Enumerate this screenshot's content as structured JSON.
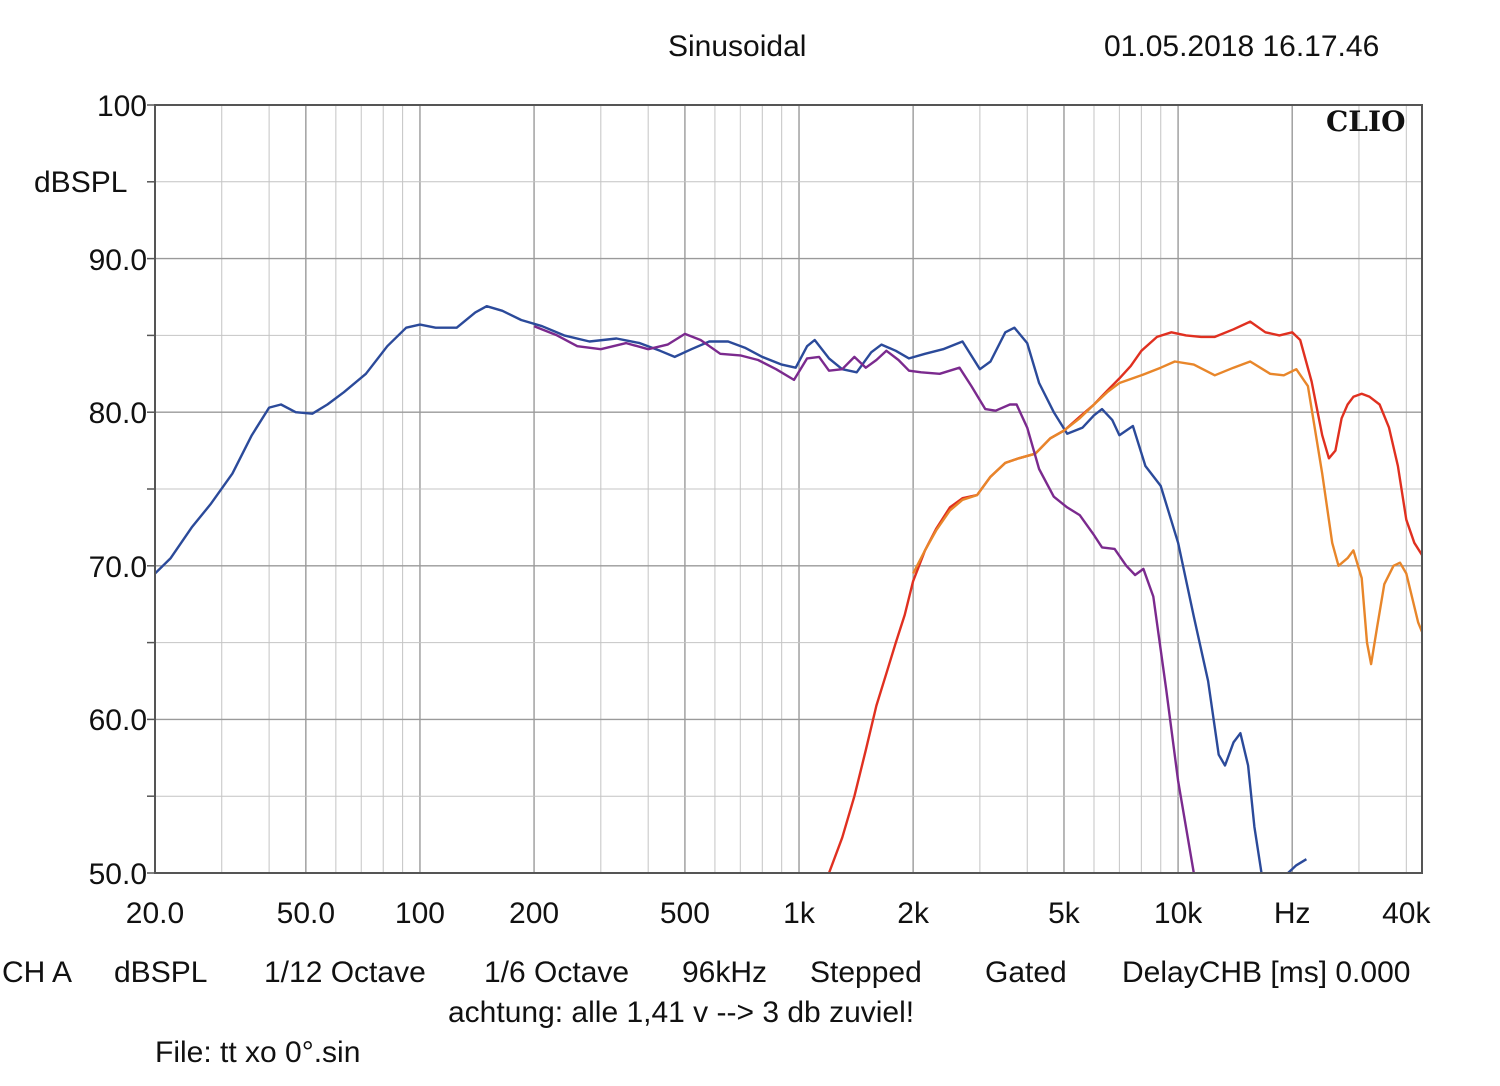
{
  "header": {
    "mode": "Sinusoidal",
    "datetime": "01.05.2018 16.17.46",
    "brand": "CLIO"
  },
  "footer": {
    "settings": [
      "CH A",
      "dBSPL",
      "1/12 Octave",
      "1/6 Octave",
      "96kHz",
      "Stepped",
      "Gated",
      "DelayCHB [ms] 0.000"
    ],
    "note": "achtung: alle 1,41 v --> 3 db zuviel!",
    "file": "File: tt xo 0°.sin"
  },
  "chart_data": {
    "type": "line",
    "title": "",
    "xlabel": "Hz",
    "ylabel": "dBSPL",
    "xscale": "log",
    "xlim": [
      20,
      44000
    ],
    "ylim": [
      50,
      100
    ],
    "grid": true,
    "x_tick_labels": [
      {
        "value": 20,
        "label": "20.0"
      },
      {
        "value": 50,
        "label": "50.0"
      },
      {
        "value": 100,
        "label": "100"
      },
      {
        "value": 200,
        "label": "200"
      },
      {
        "value": 500,
        "label": "500"
      },
      {
        "value": 1000,
        "label": "1k"
      },
      {
        "value": 2000,
        "label": "2k"
      },
      {
        "value": 5000,
        "label": "5k"
      },
      {
        "value": 10000,
        "label": "10k"
      },
      {
        "value": 20000,
        "label": "Hz"
      },
      {
        "value": 40000,
        "label": "40k"
      }
    ],
    "y_tick_labels": [
      {
        "value": 100,
        "label": "100"
      },
      {
        "value": 90,
        "label": "90.0"
      },
      {
        "value": 80,
        "label": "80.0"
      },
      {
        "value": 70,
        "label": "70.0"
      },
      {
        "value": 60,
        "label": "60.0"
      },
      {
        "value": 50,
        "label": "50.0"
      }
    ],
    "series": [
      {
        "color": "#2b4a9a",
        "points": [
          [
            20,
            69.5
          ],
          [
            22,
            70.5
          ],
          [
            25,
            72.5
          ],
          [
            28,
            74
          ],
          [
            32,
            76
          ],
          [
            36,
            78.5
          ],
          [
            40,
            80.3
          ],
          [
            43,
            80.5
          ],
          [
            47,
            80
          ],
          [
            52,
            79.9
          ],
          [
            57,
            80.5
          ],
          [
            63,
            81.3
          ],
          [
            72,
            82.5
          ],
          [
            82,
            84.3
          ],
          [
            92,
            85.5
          ],
          [
            100,
            85.7
          ],
          [
            110,
            85.5
          ],
          [
            125,
            85.5
          ],
          [
            140,
            86.5
          ],
          [
            150,
            86.9
          ],
          [
            165,
            86.6
          ],
          [
            185,
            86
          ],
          [
            210,
            85.6
          ],
          [
            240,
            85
          ],
          [
            280,
            84.6
          ],
          [
            330,
            84.8
          ],
          [
            380,
            84.5
          ],
          [
            430,
            84
          ],
          [
            470,
            83.6
          ],
          [
            520,
            84.1
          ],
          [
            580,
            84.6
          ],
          [
            650,
            84.6
          ],
          [
            720,
            84.2
          ],
          [
            800,
            83.6
          ],
          [
            900,
            83.1
          ],
          [
            980,
            82.9
          ],
          [
            1050,
            84.3
          ],
          [
            1100,
            84.7
          ],
          [
            1200,
            83.5
          ],
          [
            1300,
            82.8
          ],
          [
            1420,
            82.6
          ],
          [
            1550,
            83.9
          ],
          [
            1650,
            84.4
          ],
          [
            1800,
            84
          ],
          [
            1950,
            83.5
          ],
          [
            2150,
            83.8
          ],
          [
            2400,
            84.1
          ],
          [
            2700,
            84.6
          ],
          [
            3000,
            82.8
          ],
          [
            3200,
            83.3
          ],
          [
            3500,
            85.2
          ],
          [
            3700,
            85.5
          ],
          [
            4000,
            84.5
          ],
          [
            4300,
            81.9
          ],
          [
            4700,
            80
          ],
          [
            5100,
            78.6
          ],
          [
            5600,
            79
          ],
          [
            6000,
            79.8
          ],
          [
            6300,
            80.2
          ],
          [
            6700,
            79.5
          ],
          [
            7000,
            78.5
          ],
          [
            7600,
            79.1
          ],
          [
            8200,
            76.5
          ],
          [
            9000,
            75.2
          ],
          [
            10000,
            71.5
          ],
          [
            11000,
            66.7
          ],
          [
            12000,
            62.5
          ],
          [
            12800,
            57.7
          ],
          [
            13300,
            57
          ],
          [
            14000,
            58.5
          ],
          [
            14600,
            59.1
          ],
          [
            15300,
            57
          ],
          [
            15900,
            53
          ],
          [
            16600,
            50
          ]
        ]
      },
      {
        "color": "#2b4a9a",
        "points": [
          [
            19500,
            50
          ],
          [
            20500,
            50.5
          ],
          [
            21800,
            50.9
          ]
        ]
      },
      {
        "color": "#7b2a8e",
        "points": [
          [
            200,
            85.6
          ],
          [
            230,
            85
          ],
          [
            260,
            84.3
          ],
          [
            300,
            84.1
          ],
          [
            350,
            84.5
          ],
          [
            400,
            84.1
          ],
          [
            450,
            84.4
          ],
          [
            500,
            85.1
          ],
          [
            550,
            84.7
          ],
          [
            620,
            83.8
          ],
          [
            700,
            83.7
          ],
          [
            780,
            83.4
          ],
          [
            870,
            82.8
          ],
          [
            970,
            82.1
          ],
          [
            1050,
            83.5
          ],
          [
            1130,
            83.6
          ],
          [
            1200,
            82.7
          ],
          [
            1300,
            82.8
          ],
          [
            1400,
            83.6
          ],
          [
            1500,
            82.9
          ],
          [
            1600,
            83.4
          ],
          [
            1700,
            84
          ],
          [
            1830,
            83.4
          ],
          [
            1950,
            82.7
          ],
          [
            2100,
            82.6
          ],
          [
            2350,
            82.5
          ],
          [
            2650,
            82.9
          ],
          [
            2850,
            81.7
          ],
          [
            3100,
            80.2
          ],
          [
            3300,
            80.1
          ],
          [
            3600,
            80.5
          ],
          [
            3750,
            80.5
          ],
          [
            4000,
            79
          ],
          [
            4300,
            76.3
          ],
          [
            4700,
            74.5
          ],
          [
            5100,
            73.8
          ],
          [
            5500,
            73.3
          ],
          [
            6000,
            72
          ],
          [
            6300,
            71.2
          ],
          [
            6800,
            71.1
          ],
          [
            7300,
            70
          ],
          [
            7700,
            69.4
          ],
          [
            8100,
            69.8
          ],
          [
            8600,
            68
          ],
          [
            9300,
            62
          ],
          [
            10000,
            56
          ],
          [
            11000,
            50
          ]
        ]
      },
      {
        "color": "#e8862a",
        "points": [
          [
            2000,
            69.5
          ],
          [
            2150,
            71
          ],
          [
            2300,
            72.3
          ],
          [
            2500,
            73.6
          ],
          [
            2700,
            74.3
          ],
          [
            2950,
            74.6
          ],
          [
            3200,
            75.8
          ],
          [
            3500,
            76.7
          ],
          [
            3800,
            77
          ],
          [
            4200,
            77.3
          ],
          [
            4600,
            78.3
          ],
          [
            5000,
            78.8
          ],
          [
            5500,
            79.6
          ],
          [
            6000,
            80.5
          ],
          [
            6500,
            81.3
          ],
          [
            7000,
            81.9
          ],
          [
            8000,
            82.4
          ],
          [
            9000,
            82.9
          ],
          [
            9800,
            83.3
          ],
          [
            11000,
            83.1
          ],
          [
            12500,
            82.4
          ],
          [
            14000,
            82.9
          ],
          [
            15500,
            83.3
          ],
          [
            17500,
            82.5
          ],
          [
            19000,
            82.4
          ],
          [
            20500,
            82.8
          ],
          [
            22000,
            81.7
          ],
          [
            24000,
            76
          ],
          [
            25500,
            71.5
          ],
          [
            26500,
            70
          ],
          [
            28000,
            70.5
          ],
          [
            29000,
            71
          ],
          [
            30500,
            69.2
          ],
          [
            31500,
            65
          ],
          [
            32300,
            63.6
          ],
          [
            33500,
            66
          ],
          [
            35000,
            68.8
          ],
          [
            37000,
            70
          ],
          [
            38500,
            70.2
          ],
          [
            40000,
            69.5
          ],
          [
            43000,
            66.3
          ],
          [
            44000,
            65.7
          ]
        ]
      },
      {
        "color": "#e03020",
        "points": [
          [
            1200,
            50
          ],
          [
            1300,
            52.3
          ],
          [
            1400,
            55
          ],
          [
            1500,
            58
          ],
          [
            1600,
            60.9
          ],
          [
            1700,
            63
          ],
          [
            1800,
            65
          ],
          [
            1900,
            66.8
          ],
          [
            2000,
            69
          ],
          [
            2150,
            71
          ],
          [
            2300,
            72.4
          ],
          [
            2500,
            73.8
          ],
          [
            2700,
            74.4
          ],
          [
            2950,
            74.6
          ],
          [
            3200,
            75.8
          ],
          [
            3500,
            76.7
          ],
          [
            3800,
            77
          ],
          [
            4200,
            77.3
          ],
          [
            4600,
            78.3
          ],
          [
            5000,
            78.8
          ],
          [
            5500,
            79.7
          ],
          [
            6000,
            80.5
          ],
          [
            6500,
            81.4
          ],
          [
            7000,
            82.2
          ],
          [
            7500,
            83
          ],
          [
            8000,
            84
          ],
          [
            8800,
            84.9
          ],
          [
            9600,
            85.2
          ],
          [
            10500,
            85
          ],
          [
            11500,
            84.9
          ],
          [
            12500,
            84.9
          ],
          [
            14000,
            85.4
          ],
          [
            15500,
            85.9
          ],
          [
            17000,
            85.2
          ],
          [
            18500,
            85
          ],
          [
            20000,
            85.2
          ],
          [
            21000,
            84.7
          ],
          [
            22500,
            82
          ],
          [
            24000,
            78.5
          ],
          [
            25000,
            77
          ],
          [
            26000,
            77.5
          ],
          [
            27000,
            79.6
          ],
          [
            28000,
            80.5
          ],
          [
            29000,
            81
          ],
          [
            30500,
            81.2
          ],
          [
            32000,
            81
          ],
          [
            34000,
            80.5
          ],
          [
            36000,
            79
          ],
          [
            38000,
            76.5
          ],
          [
            40000,
            73
          ],
          [
            42000,
            71.5
          ],
          [
            44000,
            70.7
          ]
        ]
      }
    ]
  }
}
